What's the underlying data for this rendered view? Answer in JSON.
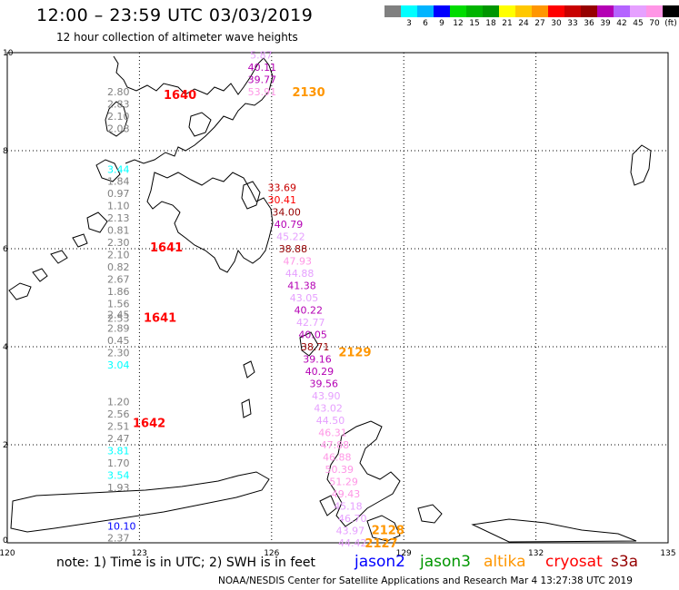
{
  "header": {
    "title": "12:00 – 23:59 UTC 03/03/2019",
    "subtitle": "12 hour collection of altimeter wave heights"
  },
  "legend": {
    "colors": [
      "#808080",
      "#00ffff",
      "#00b4ff",
      "#0000ff",
      "#00dc00",
      "#00b400",
      "#009600",
      "#ffff00",
      "#ffc800",
      "#ff9600",
      "#ff0000",
      "#c80000",
      "#960000",
      "#b400b4",
      "#b464ff",
      "#e6a0ff",
      "#ff96e6",
      "#000000"
    ],
    "labels": [
      "",
      "3",
      "6",
      "9",
      "12",
      "15",
      "18",
      "21",
      "24",
      "27",
      "30",
      "33",
      "36",
      "39",
      "42",
      "45",
      "70",
      "(ft)"
    ]
  },
  "axes": {
    "x_ticks": [
      "120",
      "123",
      "126",
      "129",
      "132",
      "135"
    ],
    "y_ticks": [
      "0",
      "2",
      "4",
      "6",
      "8",
      "10"
    ]
  },
  "satellites": [
    {
      "name": "jason2",
      "color": "#0000ff"
    },
    {
      "name": "jason3",
      "color": "#009600"
    },
    {
      "name": "altika",
      "color": "#ff9600"
    },
    {
      "name": "cryosat",
      "color": "#ff0000"
    },
    {
      "name": "s3a",
      "color": "#960000"
    }
  ],
  "footer": {
    "note": "note:  1) Time is in UTC;  2) SWH is in feet",
    "credit": "NOAA/NESDIS Center for Satellite Applications and Research   Mar  4 13:27:38 UTC 2019"
  },
  "time_labels": [
    {
      "text": "1640",
      "lon": 120.8,
      "lat": 9.15,
      "color": "#ff0000"
    },
    {
      "text": "1641",
      "lon": 120.8,
      "lat": 6.04,
      "color": "#ff0000"
    },
    {
      "text": "1641",
      "lon": 120.8,
      "lat": 4.6,
      "color": "#ff0000"
    },
    {
      "text": "1642",
      "lon": 120.8,
      "lat": 2.45,
      "color": "#ff0000"
    },
    {
      "text": "2130",
      "lon": 126.55,
      "lat": 9.2,
      "color": "#ff9600"
    },
    {
      "text": "2129",
      "lon": 127.6,
      "lat": 3.9,
      "color": "#ff9600"
    },
    {
      "text": "2128",
      "lon": 128.35,
      "lat": 0.27,
      "color": "#ff9600"
    },
    {
      "text": "2127",
      "lon": 128.2,
      "lat": 0.0,
      "color": "#ff9600"
    }
  ],
  "wave_heights_cryosat": [
    {
      "v": "2.80",
      "lat": 9.2,
      "c": "#808080"
    },
    {
      "v": "2.83",
      "lat": 8.95,
      "c": "#808080"
    },
    {
      "v": "2.10",
      "lat": 8.7,
      "c": "#808080"
    },
    {
      "v": "2.08",
      "lat": 8.45,
      "c": "#808080"
    },
    {
      "v": "3.44",
      "lat": 7.62,
      "c": "#00ffff"
    },
    {
      "v": "1.84",
      "lat": 7.38,
      "c": "#808080"
    },
    {
      "v": "0.97",
      "lat": 7.13,
      "c": "#808080"
    },
    {
      "v": "1.10",
      "lat": 6.88,
      "c": "#808080"
    },
    {
      "v": "2.13",
      "lat": 6.63,
      "c": "#808080"
    },
    {
      "v": "0.81",
      "lat": 6.38,
      "c": "#808080"
    },
    {
      "v": "2.30",
      "lat": 6.13,
      "c": "#808080"
    },
    {
      "v": "2.10",
      "lat": 5.88,
      "c": "#808080"
    },
    {
      "v": "0.82",
      "lat": 5.63,
      "c": "#808080"
    },
    {
      "v": "2.67",
      "lat": 5.38,
      "c": "#808080"
    },
    {
      "v": "1.86",
      "lat": 5.13,
      "c": "#808080"
    },
    {
      "v": "1.56",
      "lat": 4.88,
      "c": "#808080"
    },
    {
      "v": "2.45",
      "lat": 4.66,
      "c": "#808080"
    },
    {
      "v": "2.53",
      "lat": 4.58,
      "c": "#808080"
    },
    {
      "v": "2.89",
      "lat": 4.38,
      "c": "#808080"
    },
    {
      "v": "0.45",
      "lat": 4.13,
      "c": "#808080"
    },
    {
      "v": "2.30",
      "lat": 3.88,
      "c": "#808080"
    },
    {
      "v": "3.04",
      "lat": 3.63,
      "c": "#00ffff"
    },
    {
      "v": "1.20",
      "lat": 2.88,
      "c": "#808080"
    },
    {
      "v": "2.56",
      "lat": 2.63,
      "c": "#808080"
    },
    {
      "v": "2.51",
      "lat": 2.38,
      "c": "#808080"
    },
    {
      "v": "2.47",
      "lat": 2.13,
      "c": "#808080"
    },
    {
      "v": "3.81",
      "lat": 1.88,
      "c": "#00ffff"
    },
    {
      "v": "1.70",
      "lat": 1.63,
      "c": "#808080"
    },
    {
      "v": "3.54",
      "lat": 1.38,
      "c": "#00ffff"
    },
    {
      "v": "1.93",
      "lat": 1.13,
      "c": "#808080"
    },
    {
      "v": "10.10",
      "lat": 0.34,
      "c": "#0000ff"
    },
    {
      "v": "2.37",
      "lat": 0.1,
      "c": "#808080"
    }
  ],
  "wave_heights_altika": [
    {
      "v": "5.87",
      "lon": 125.8,
      "lat": 9.95,
      "c": "#e6a0ff"
    },
    {
      "v": "40.11",
      "lon": 125.75,
      "lat": 9.7,
      "c": "#b400b4"
    },
    {
      "v": "39.77",
      "lon": 125.75,
      "lat": 9.45,
      "c": "#b400b4"
    },
    {
      "v": "53.91",
      "lon": 125.75,
      "lat": 9.2,
      "c": "#ff96e6"
    },
    {
      "v": "33.69",
      "lon": 126.2,
      "lat": 7.25,
      "c": "#c80000"
    },
    {
      "v": "30.41",
      "lon": 126.2,
      "lat": 7.0,
      "c": "#ff0000"
    },
    {
      "v": "34.00",
      "lon": 126.3,
      "lat": 6.75,
      "c": "#960000"
    },
    {
      "v": "40.79",
      "lon": 126.35,
      "lat": 6.5,
      "c": "#b400b4"
    },
    {
      "v": "45.22",
      "lon": 126.4,
      "lat": 6.25,
      "c": "#e6a0ff"
    },
    {
      "v": "38.88",
      "lon": 126.45,
      "lat": 6.0,
      "c": "#960000"
    },
    {
      "v": "47.93",
      "lon": 126.55,
      "lat": 5.75,
      "c": "#ff96e6"
    },
    {
      "v": "44.88",
      "lon": 126.6,
      "lat": 5.5,
      "c": "#e6a0ff"
    },
    {
      "v": "41.38",
      "lon": 126.65,
      "lat": 5.25,
      "c": "#b400b4"
    },
    {
      "v": "43.05",
      "lon": 126.7,
      "lat": 5.0,
      "c": "#e6a0ff"
    },
    {
      "v": "40.22",
      "lon": 126.8,
      "lat": 4.75,
      "c": "#b400b4"
    },
    {
      "v": "42.77",
      "lon": 126.85,
      "lat": 4.5,
      "c": "#e6a0ff"
    },
    {
      "v": "40.05",
      "lon": 126.9,
      "lat": 4.25,
      "c": "#b400b4"
    },
    {
      "v": "38.71",
      "lon": 126.95,
      "lat": 4.0,
      "c": "#960000"
    },
    {
      "v": "39.16",
      "lon": 127.0,
      "lat": 3.75,
      "c": "#b400b4"
    },
    {
      "v": "40.29",
      "lon": 127.05,
      "lat": 3.5,
      "c": "#b400b4"
    },
    {
      "v": "39.56",
      "lon": 127.15,
      "lat": 3.25,
      "c": "#b400b4"
    },
    {
      "v": "43.90",
      "lon": 127.2,
      "lat": 3.0,
      "c": "#e6a0ff"
    },
    {
      "v": "43.02",
      "lon": 127.25,
      "lat": 2.75,
      "c": "#e6a0ff"
    },
    {
      "v": "44.50",
      "lon": 127.3,
      "lat": 2.5,
      "c": "#e6a0ff"
    },
    {
      "v": "46.31",
      "lon": 127.35,
      "lat": 2.25,
      "c": "#ff96e6"
    },
    {
      "v": "47.88",
      "lon": 127.4,
      "lat": 2.0,
      "c": "#ff96e6"
    },
    {
      "v": "46.88",
      "lon": 127.45,
      "lat": 1.75,
      "c": "#ff96e6"
    },
    {
      "v": "50.39",
      "lon": 127.5,
      "lat": 1.5,
      "c": "#ff96e6"
    },
    {
      "v": "51.29",
      "lon": 127.6,
      "lat": 1.25,
      "c": "#ff96e6"
    },
    {
      "v": "49.43",
      "lon": 127.65,
      "lat": 1.0,
      "c": "#ff96e6"
    },
    {
      "v": "45.18",
      "lon": 127.7,
      "lat": 0.75,
      "c": "#e6a0ff"
    },
    {
      "v": "46.70",
      "lon": 127.8,
      "lat": 0.5,
      "c": "#e6a0ff"
    },
    {
      "v": "43.97",
      "lon": 127.75,
      "lat": 0.25,
      "c": "#e6a0ff"
    },
    {
      "v": "44.42",
      "lon": 127.8,
      "lat": 0.0,
      "c": "#e6a0ff"
    }
  ]
}
